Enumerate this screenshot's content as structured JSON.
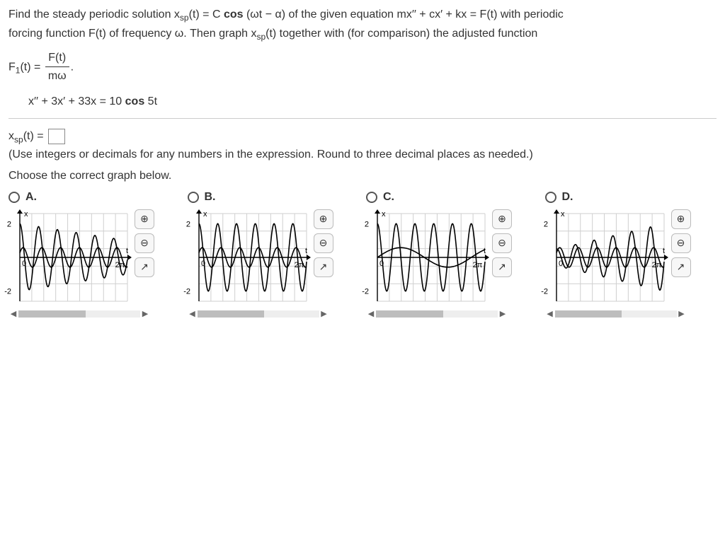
{
  "problem": {
    "line1_a": "Find the steady periodic solution x",
    "line1_sub1": "sp",
    "line1_b": "(t) = C ",
    "line1_cos": "cos",
    "line1_c": " (ωt − α) of the given equation mx′′ + cx′ + kx = F(t) with periodic",
    "line2_a": "forcing function F(t) of frequency ω. Then graph x",
    "line2_sub": "sp",
    "line2_b": "(t) together with (for comparison) the adjusted function",
    "f1_lhs_a": "F",
    "f1_lhs_sub": "1",
    "f1_lhs_b": "(t) = ",
    "f1_num": "F(t)",
    "f1_den": "mω",
    "f1_end": ".",
    "equation": "x′′ + 3x′ + 33x = 10 ",
    "equation_cos": "cos",
    "equation_tail": " 5t"
  },
  "answer": {
    "lhs_a": "x",
    "lhs_sub": "sp",
    "lhs_b": "(t) = ",
    "hint": "(Use integers or decimals for any numbers in the expression. Round to three decimal places as needed.)",
    "choose": "Choose the correct graph below."
  },
  "options": {
    "labels": [
      "A.",
      "B.",
      "C.",
      "D."
    ],
    "graph": {
      "width": 172,
      "height": 140,
      "x_min": 0,
      "x_max": 7.2,
      "y_min": -2.6,
      "y_max": 2.6,
      "y_ticks": [
        2,
        -2
      ],
      "y_tick_labels": [
        "2",
        "-2"
      ],
      "x_label": "t",
      "y_label": "x",
      "x_tick_at": 6.2832,
      "x_tick_label": "2π",
      "grid_color": "#cfcfcf",
      "axis_color": "#000000",
      "curve_color": "#000000",
      "curve_width": 1.6,
      "background": "#ffffff",
      "x_gridlines": 9,
      "y_gridlines": 5,
      "origin_label": "0"
    },
    "curves": {
      "A": {
        "large": {
          "type": "cos",
          "amp": 2.0,
          "freq": 5,
          "phase": 0,
          "fade_to": 1.0
        },
        "small": {
          "type": "cos",
          "amp": 0.58,
          "freq": 5,
          "phase": 1.08
        }
      },
      "B": {
        "large": {
          "type": "cos",
          "amp": 2.0,
          "freq": 5,
          "phase": 0
        },
        "small": {
          "type": "cos",
          "amp": 0.58,
          "freq": 5,
          "phase": 1.08
        }
      },
      "C": {
        "large": {
          "type": "cos",
          "amp": 2.0,
          "freq": 5,
          "phase": 0
        },
        "small": {
          "type": "sin",
          "amp": 0.58,
          "freq": 1,
          "phase": 0
        }
      },
      "D": {
        "large": {
          "type": "cos",
          "amp": 2.0,
          "freq": 5,
          "phase": 0,
          "grow_from": 0.5
        },
        "small": {
          "type": "cos",
          "amp": 0.58,
          "freq": 5,
          "phase": 1.08
        }
      }
    }
  },
  "icons": {
    "zoom_in": "⊕",
    "zoom_out": "⊖",
    "popout": "↗",
    "left": "◀",
    "right": "▶"
  }
}
